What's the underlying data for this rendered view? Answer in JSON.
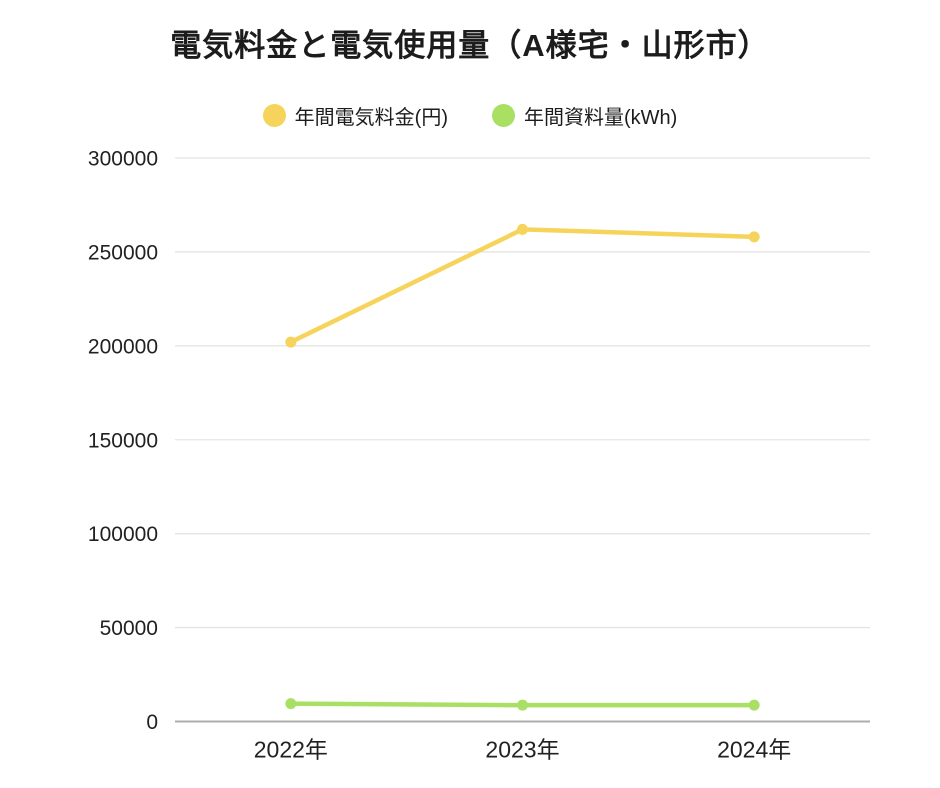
{
  "chart_data": {
    "type": "line",
    "title": "電気料金と電気使用量（A様宅・山形市）",
    "categories": [
      "2022年",
      "2023年",
      "2024年"
    ],
    "series": [
      {
        "name": "年間電気料金(円)",
        "color": "#F6D45C",
        "values": [
          202000,
          262000,
          258000
        ]
      },
      {
        "name": "年間資料量(kWh)",
        "color": "#A9E063",
        "values": [
          9500,
          8700,
          8700
        ]
      }
    ],
    "ylim": [
      0,
      300000
    ],
    "yticks": [
      0,
      50000,
      100000,
      150000,
      200000,
      250000,
      300000
    ],
    "grid": "horizontal",
    "legend_position": "top"
  },
  "colors": {
    "gridline": "#E4E4E4",
    "axis_line": "#ACACAC",
    "tick_text": "#212121",
    "background": "#FFFFFF"
  }
}
